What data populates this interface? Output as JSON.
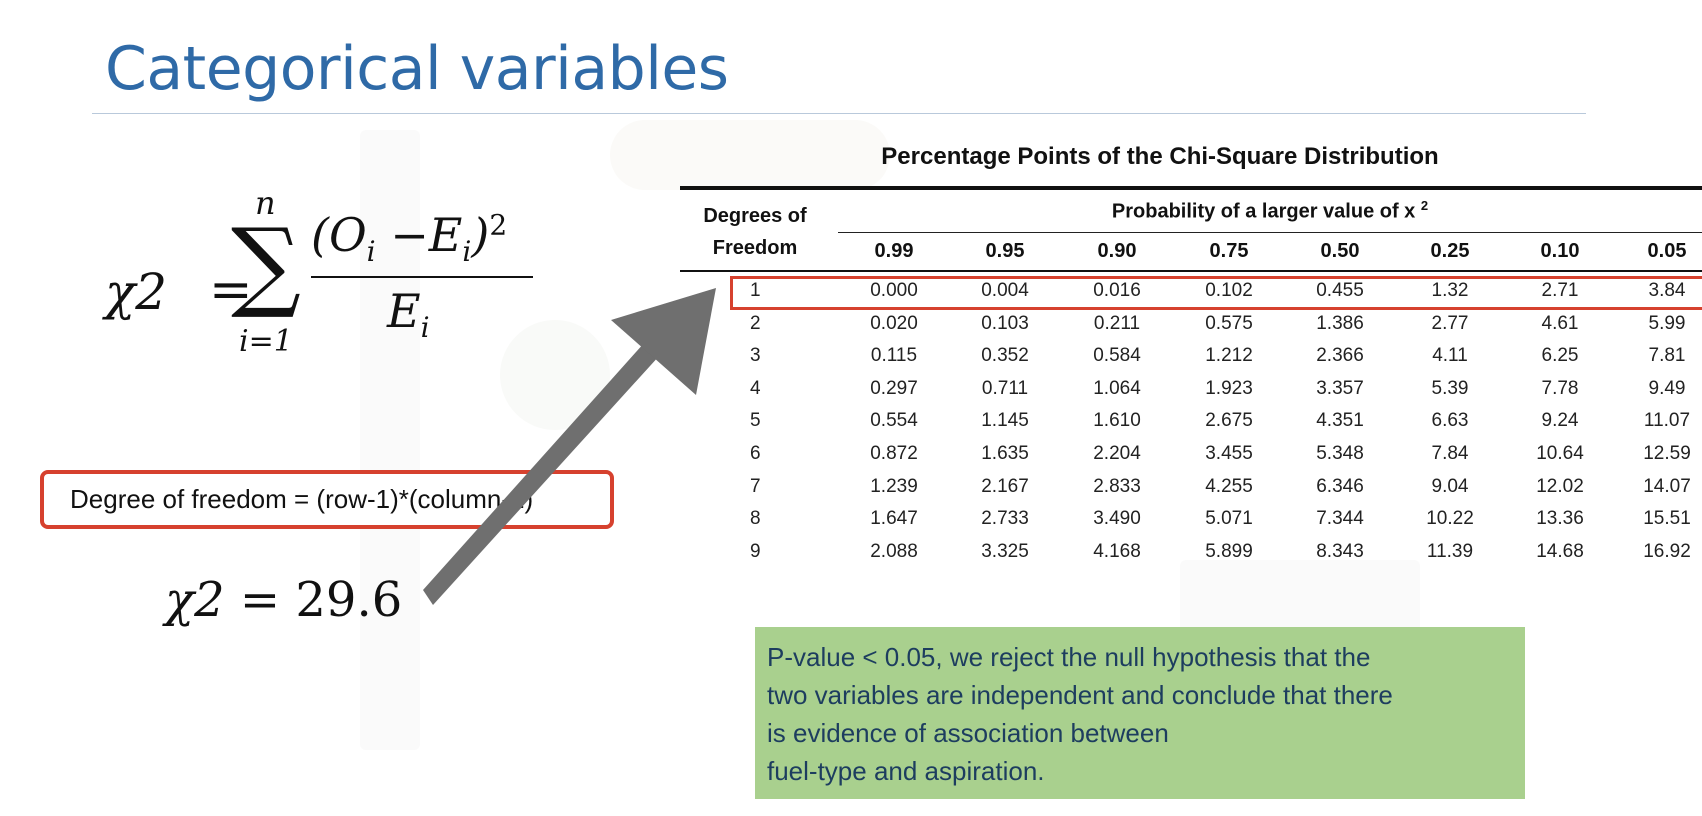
{
  "slide": {
    "title": "Categorical variables"
  },
  "formula": {
    "lhs": "χ2",
    "equals": "=",
    "sum_symbol": "∑",
    "upper_limit": "n",
    "lower_limit": "i=1",
    "numerator": "(O",
    "numerator_sub_1": "i",
    "numerator_mid": " −E",
    "numerator_sub_2": "i",
    "numerator_close": ")",
    "numerator_power": "2",
    "denominator": "E",
    "denominator_sub": "i"
  },
  "degree_of_freedom": {
    "text": "Degree of freedom = (row-1)*(column-1)"
  },
  "result": {
    "chi": "χ2",
    "equals": " = ",
    "value": "29.6"
  },
  "chart_data": {
    "type": "table",
    "title": "Percentage Points of the Chi-Square Distribution",
    "row_header": [
      "Degrees of",
      "Freedom"
    ],
    "column_group_header": "Probability of a larger value of x",
    "column_group_header_power": "2",
    "columns": [
      "0.99",
      "0.95",
      "0.90",
      "0.75",
      "0.50",
      "0.25",
      "0.10",
      "0.05"
    ],
    "rows": [
      {
        "df": "1",
        "values": [
          "0.000",
          "0.004",
          "0.016",
          "0.102",
          "0.455",
          "1.32",
          "2.71",
          "3.84"
        ]
      },
      {
        "df": "2",
        "values": [
          "0.020",
          "0.103",
          "0.211",
          "0.575",
          "1.386",
          "2.77",
          "4.61",
          "5.99"
        ]
      },
      {
        "df": "3",
        "values": [
          "0.115",
          "0.352",
          "0.584",
          "1.212",
          "2.366",
          "4.11",
          "6.25",
          "7.81"
        ]
      },
      {
        "df": "4",
        "values": [
          "0.297",
          "0.711",
          "1.064",
          "1.923",
          "3.357",
          "5.39",
          "7.78",
          "9.49"
        ]
      },
      {
        "df": "5",
        "values": [
          "0.554",
          "1.145",
          "1.610",
          "2.675",
          "4.351",
          "6.63",
          "9.24",
          "11.07"
        ]
      },
      {
        "df": "6",
        "values": [
          "0.872",
          "1.635",
          "2.204",
          "3.455",
          "5.348",
          "7.84",
          "10.64",
          "12.59"
        ]
      },
      {
        "df": "7",
        "values": [
          "1.239",
          "2.167",
          "2.833",
          "4.255",
          "6.346",
          "9.04",
          "12.02",
          "14.07"
        ]
      },
      {
        "df": "8",
        "values": [
          "1.647",
          "2.733",
          "3.490",
          "5.071",
          "7.344",
          "10.22",
          "13.36",
          "15.51"
        ]
      },
      {
        "df": "9",
        "values": [
          "2.088",
          "3.325",
          "4.168",
          "5.899",
          "8.343",
          "11.39",
          "14.68",
          "16.92"
        ]
      }
    ],
    "highlighted_row": "1"
  },
  "conclusion": {
    "lines": [
      "P-value < 0.05, we reject the null hypothesis that the",
      "two variables are independent and conclude that there",
      "is evidence of association between",
      "fuel-type and aspiration."
    ]
  },
  "colors": {
    "title": "#2f6aa7",
    "highlight_border": "#d6412e",
    "conclusion_background": "#a9d08e",
    "conclusion_text": "#1d3d5f",
    "arrow": "#6f6f6f"
  },
  "icons": {
    "pointer_arrow": "arrow-icon"
  }
}
